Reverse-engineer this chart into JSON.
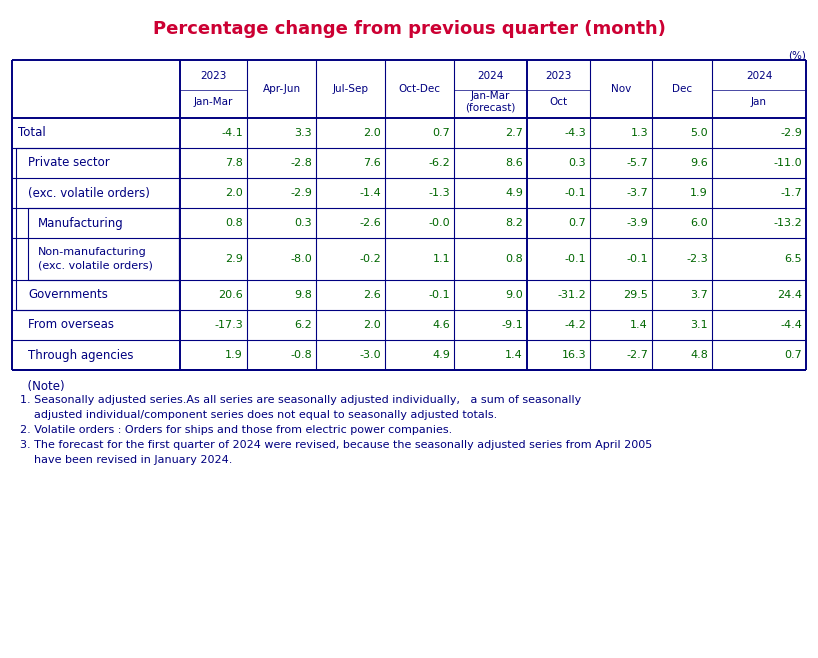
{
  "title": "Percentage change from previous quarter (month)",
  "title_color": "#cc0033",
  "unit_label": "(%)",
  "border_color": "#000080",
  "value_color": "#006600",
  "label_color": "#000080",
  "note_color": "#000080",
  "background_color": "#ffffff",
  "col_header_lines": [
    [
      "",
      "2023",
      "",
      "",
      "",
      "2024",
      "2023",
      "",
      "",
      "2024"
    ],
    [
      "",
      "Jan-Mar",
      "Apr-Jun",
      "Jul-Sep",
      "Oct-Dec",
      "Jan-Mar\n(forecast)",
      "Oct",
      "Nov",
      "Dec",
      "Jan"
    ]
  ],
  "rows": [
    {
      "label": "Total",
      "indent": 0,
      "values": [
        "-4.1",
        "3.3",
        "2.0",
        "0.7",
        "2.7",
        "-4.3",
        "1.3",
        "5.0",
        "-2.9"
      ]
    },
    {
      "label": "Private sector",
      "indent": 1,
      "values": [
        "7.8",
        "-2.8",
        "7.6",
        "-6.2",
        "8.6",
        "0.3",
        "-5.7",
        "9.6",
        "-11.0"
      ]
    },
    {
      "label": "(exc. volatile orders)",
      "indent": 1,
      "values": [
        "2.0",
        "-2.9",
        "-1.4",
        "-1.3",
        "4.9",
        "-0.1",
        "-3.7",
        "1.9",
        "-1.7"
      ]
    },
    {
      "label": "Manufacturing",
      "indent": 2,
      "values": [
        "0.8",
        "0.3",
        "-2.6",
        "-0.0",
        "8.2",
        "0.7",
        "-3.9",
        "6.0",
        "-13.2"
      ]
    },
    {
      "label": "Non-manufacturing\n(exc. volatile orders)",
      "indent": 2,
      "values": [
        "2.9",
        "-8.0",
        "-0.2",
        "1.1",
        "0.8",
        "-0.1",
        "-0.1",
        "-2.3",
        "6.5"
      ]
    },
    {
      "label": "Governments",
      "indent": 1,
      "values": [
        "20.6",
        "9.8",
        "2.6",
        "-0.1",
        "9.0",
        "-31.2",
        "29.5",
        "3.7",
        "24.4"
      ]
    },
    {
      "label": "From overseas",
      "indent": 1,
      "values": [
        "-17.3",
        "6.2",
        "2.0",
        "4.6",
        "-9.1",
        "-4.2",
        "1.4",
        "3.1",
        "-4.4"
      ]
    },
    {
      "label": "Through agencies",
      "indent": 1,
      "values": [
        "1.9",
        "-0.8",
        "-3.0",
        "4.9",
        "1.4",
        "16.3",
        "-2.7",
        "4.8",
        "0.7"
      ]
    }
  ],
  "notes": [
    [
      "  (Note)",
      false
    ],
    [
      "1. Seasonally adjusted series.As all series are seasonally adjusted individually,   a sum of seasonally",
      false
    ],
    [
      "    adjusted individual/component series does not equal to seasonally adjusted totals.",
      false
    ],
    [
      "2. Volatile orders : Orders for ships and those from electric power companies.",
      false
    ],
    [
      "3. The forecast for the first quarter of 2024 were revised, because the seasonally adjusted series from April 2005",
      false
    ],
    [
      "    have been revised in January 2024.",
      false
    ]
  ]
}
